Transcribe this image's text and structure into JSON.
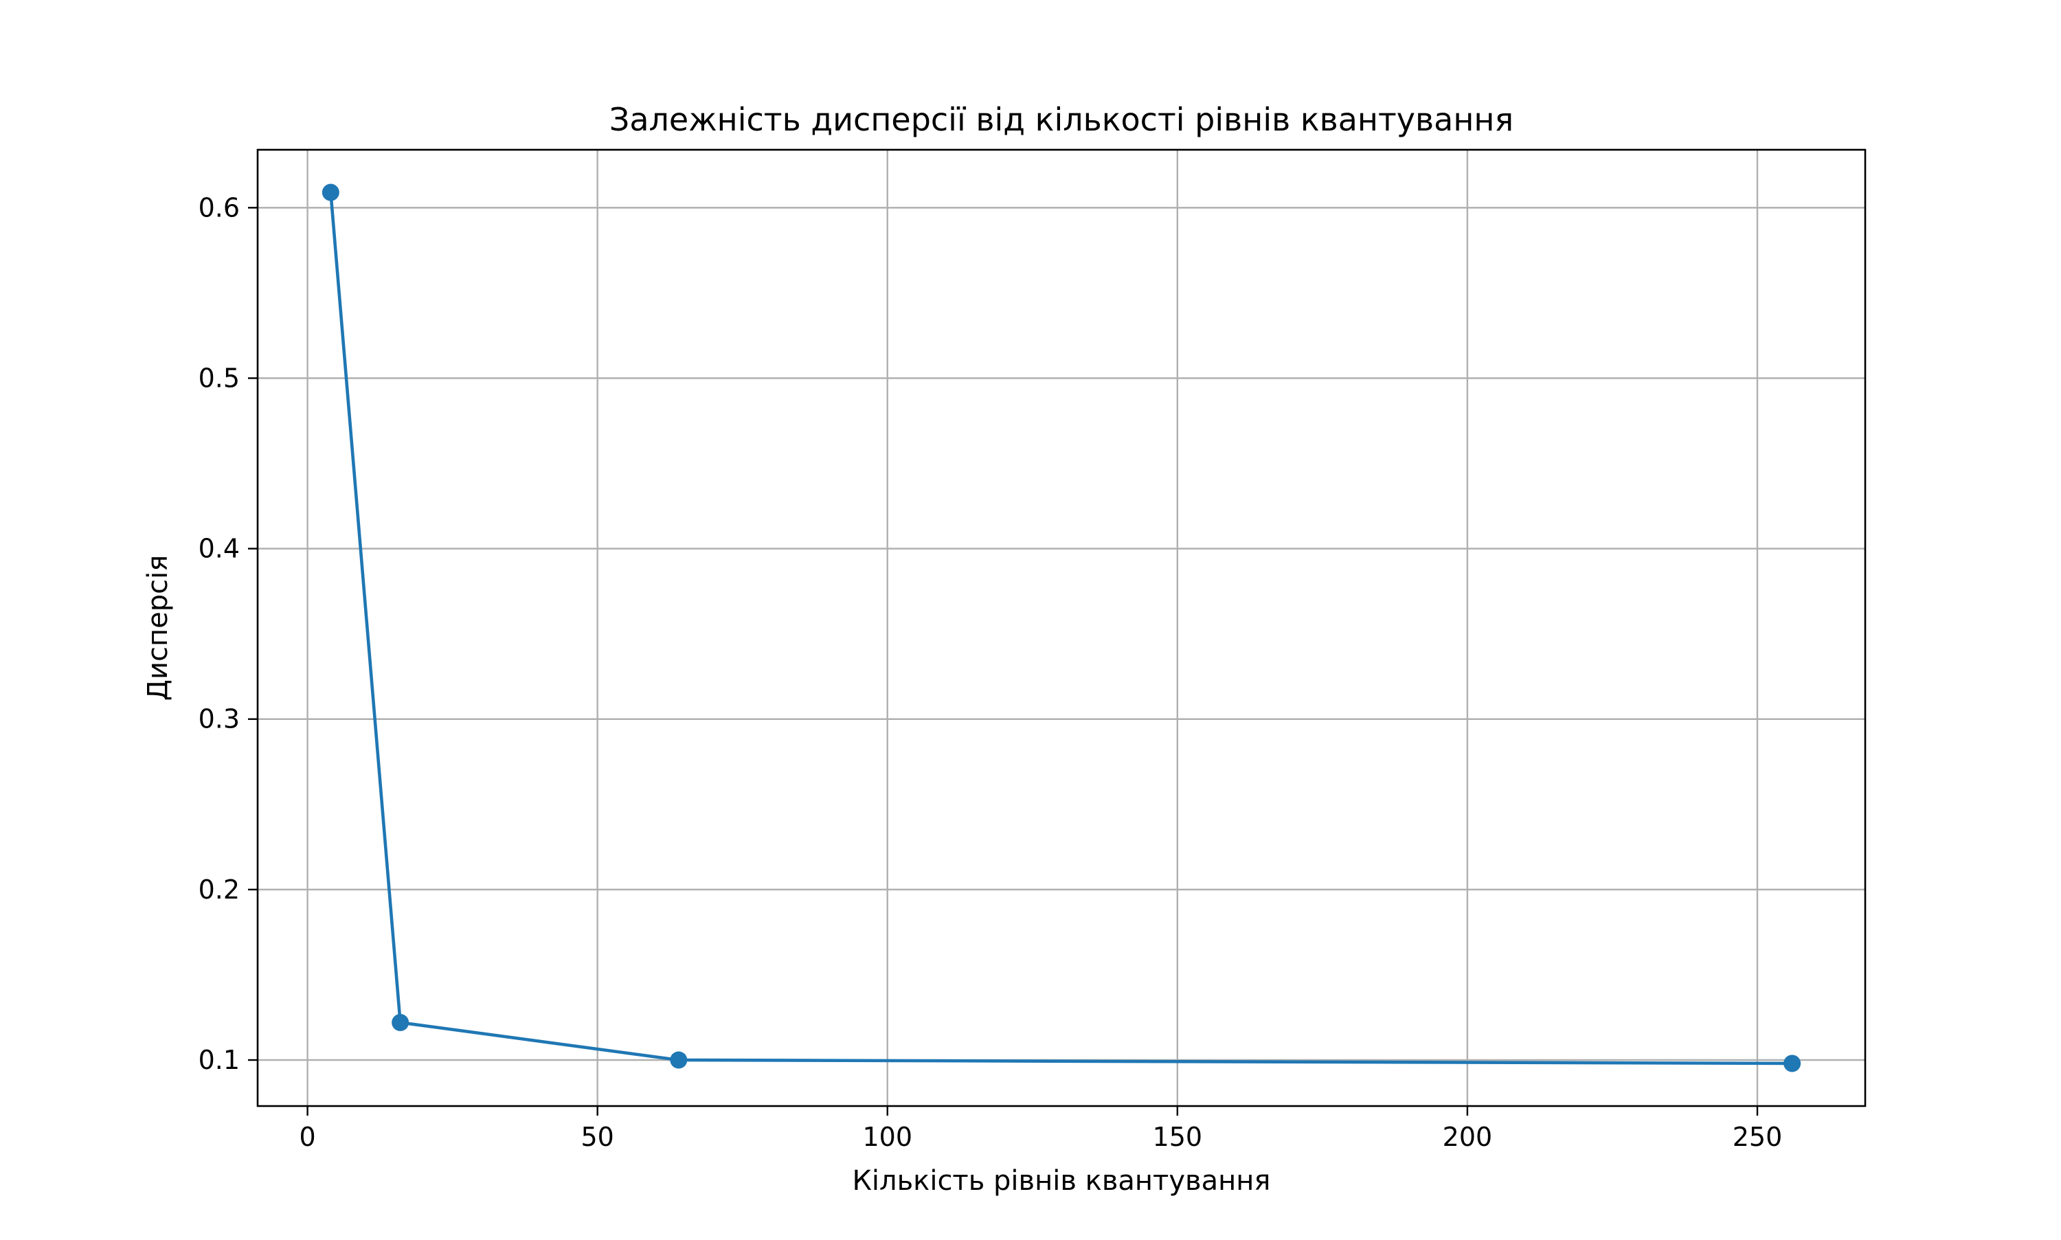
{
  "chart_data": {
    "type": "line",
    "title": "Залежність дисперсії від кількості рівнів квантування",
    "xlabel": "Кількість рівнів квантування",
    "ylabel": "Дисперсія",
    "xlim": [
      -8.6,
      268.6
    ],
    "ylim": [
      0.073,
      0.634
    ],
    "xticks": [
      0,
      50,
      100,
      150,
      200,
      250
    ],
    "xtick_labels": [
      "0",
      "50",
      "100",
      "150",
      "200",
      "250"
    ],
    "yticks": [
      0.1,
      0.2,
      0.3,
      0.4,
      0.5,
      0.6
    ],
    "ytick_labels": [
      "0.1",
      "0.2",
      "0.3",
      "0.4",
      "0.5",
      "0.6"
    ],
    "grid": true,
    "marker": "circle",
    "color": "#1f77b4",
    "series": [
      {
        "x": [
          4,
          16,
          64,
          256
        ],
        "values": [
          0.609,
          0.122,
          0.1,
          0.098
        ]
      }
    ]
  }
}
